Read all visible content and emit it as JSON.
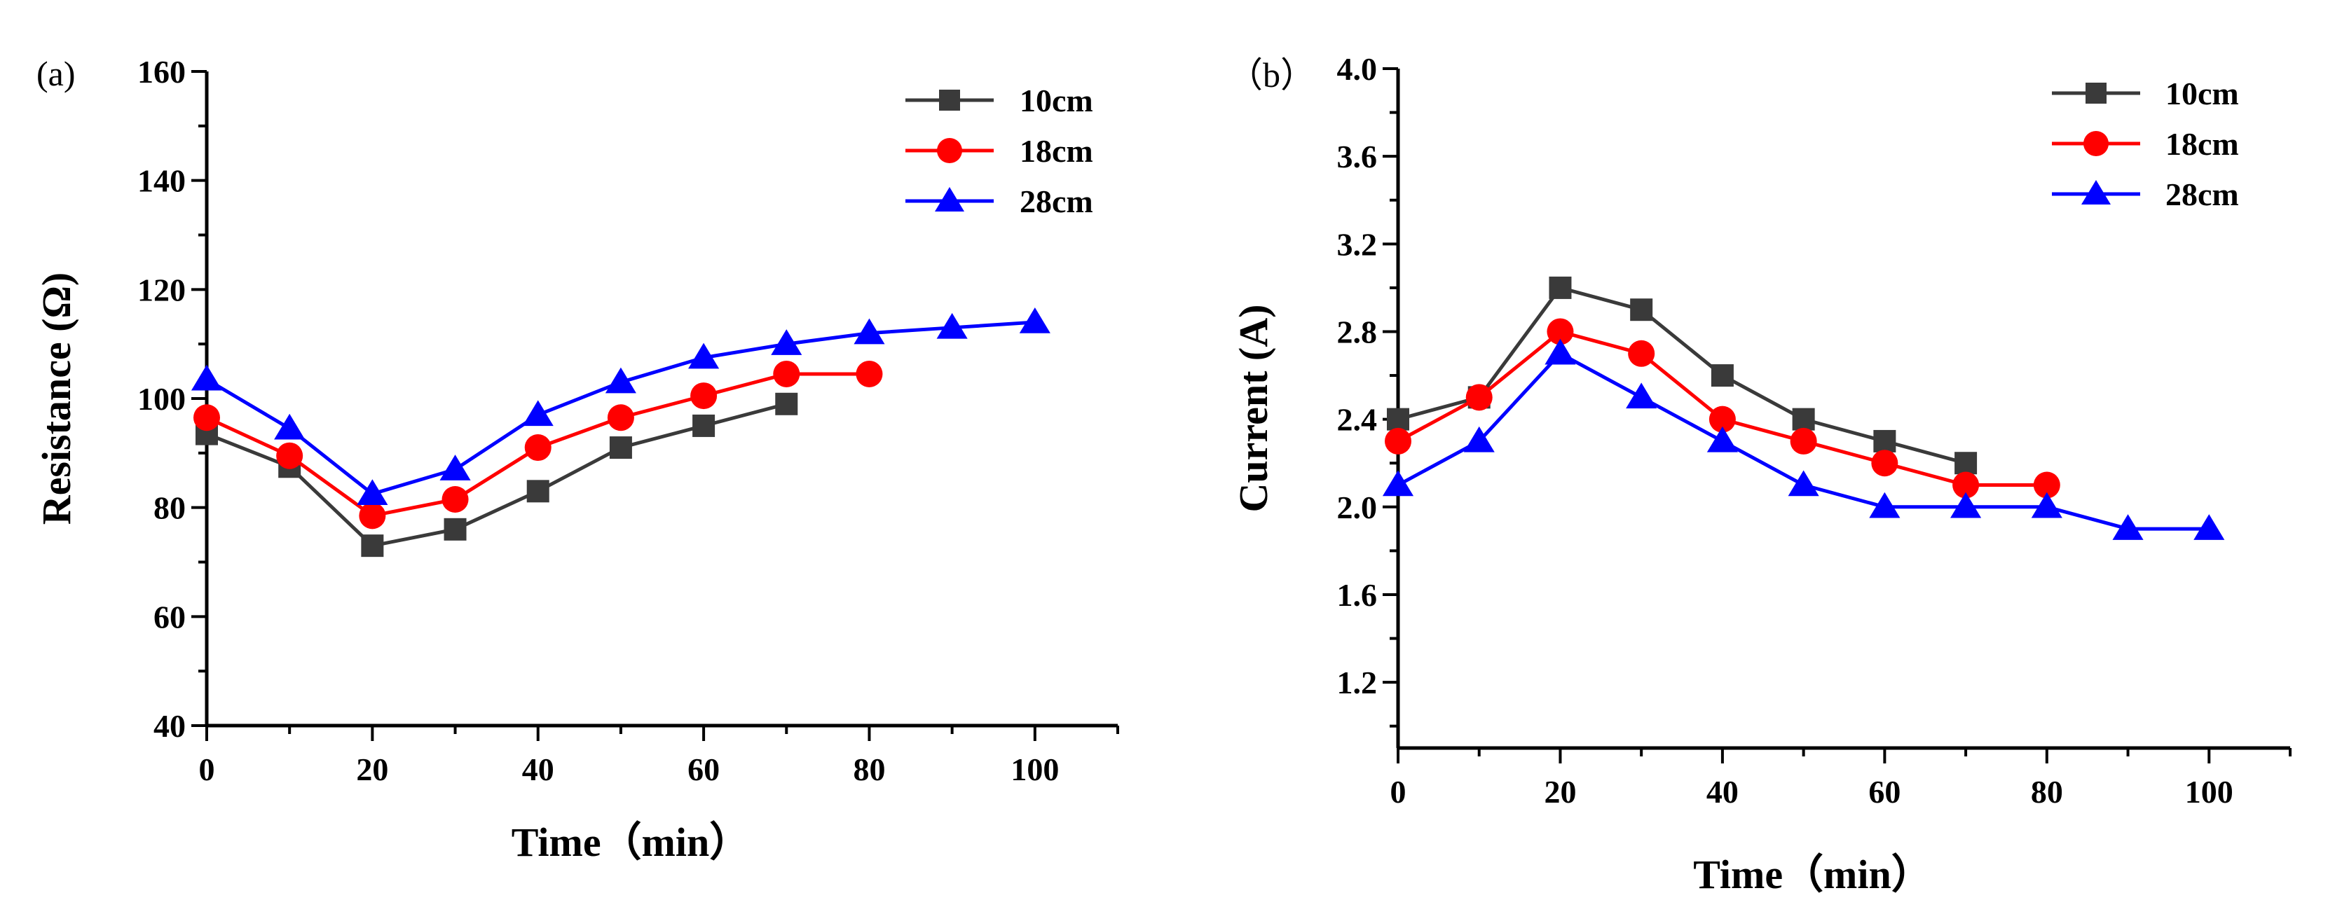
{
  "chart_data": [
    {
      "type": "line",
      "panel_label": "(a)",
      "title": "",
      "xlabel": "Time（min）",
      "ylabel": "Resistance (Ω)",
      "xlim": [
        0,
        110
      ],
      "ylim": [
        40,
        160
      ],
      "xticks": [
        0,
        20,
        40,
        60,
        80,
        100
      ],
      "yticks": [
        40,
        60,
        80,
        100,
        120,
        140,
        160
      ],
      "legend_position": "top-right",
      "series": [
        {
          "name": "10cm",
          "color": "#3a3a3a",
          "marker": "square",
          "x": [
            0,
            10,
            20,
            30,
            40,
            50,
            60,
            70
          ],
          "y": [
            93.5,
            87.5,
            73,
            76,
            83,
            91,
            95,
            99
          ]
        },
        {
          "name": "18cm",
          "color": "#ff0000",
          "marker": "circle",
          "x": [
            0,
            10,
            20,
            30,
            40,
            50,
            60,
            70,
            80
          ],
          "y": [
            96.5,
            89.5,
            78.5,
            81.5,
            91,
            96.5,
            100.5,
            104.5,
            104.5
          ]
        },
        {
          "name": "28cm",
          "color": "#0000ff",
          "marker": "triangle",
          "x": [
            0,
            10,
            20,
            30,
            40,
            50,
            60,
            70,
            80,
            90,
            100
          ],
          "y": [
            103.5,
            94.5,
            82.5,
            87,
            97,
            103,
            107.5,
            110,
            112,
            113,
            114
          ]
        }
      ]
    },
    {
      "type": "line",
      "panel_label": "（b）",
      "title": "",
      "xlabel": "Time（min）",
      "ylabel": "Current (A)",
      "xlim": [
        0,
        110
      ],
      "ylim": [
        0.9,
        4.0
      ],
      "xticks": [
        0,
        20,
        40,
        60,
        80,
        100
      ],
      "yticks": [
        1.2,
        1.6,
        2.0,
        2.4,
        2.8,
        3.2,
        3.6,
        4.0
      ],
      "legend_position": "top-right",
      "series": [
        {
          "name": "10cm",
          "color": "#3a3a3a",
          "marker": "square",
          "x": [
            0,
            10,
            20,
            30,
            40,
            50,
            60,
            70
          ],
          "y": [
            2.4,
            2.5,
            3.0,
            2.9,
            2.6,
            2.4,
            2.3,
            2.2
          ]
        },
        {
          "name": "18cm",
          "color": "#ff0000",
          "marker": "circle",
          "x": [
            0,
            10,
            20,
            30,
            40,
            50,
            60,
            70,
            80
          ],
          "y": [
            2.3,
            2.5,
            2.8,
            2.7,
            2.4,
            2.3,
            2.2,
            2.1,
            2.1
          ]
        },
        {
          "name": "28cm",
          "color": "#0000ff",
          "marker": "triangle",
          "x": [
            0,
            10,
            20,
            30,
            40,
            50,
            60,
            70,
            80,
            90,
            100
          ],
          "y": [
            2.1,
            2.3,
            2.7,
            2.5,
            2.3,
            2.1,
            2.0,
            2.0,
            2.0,
            1.9,
            1.9
          ]
        }
      ]
    }
  ]
}
